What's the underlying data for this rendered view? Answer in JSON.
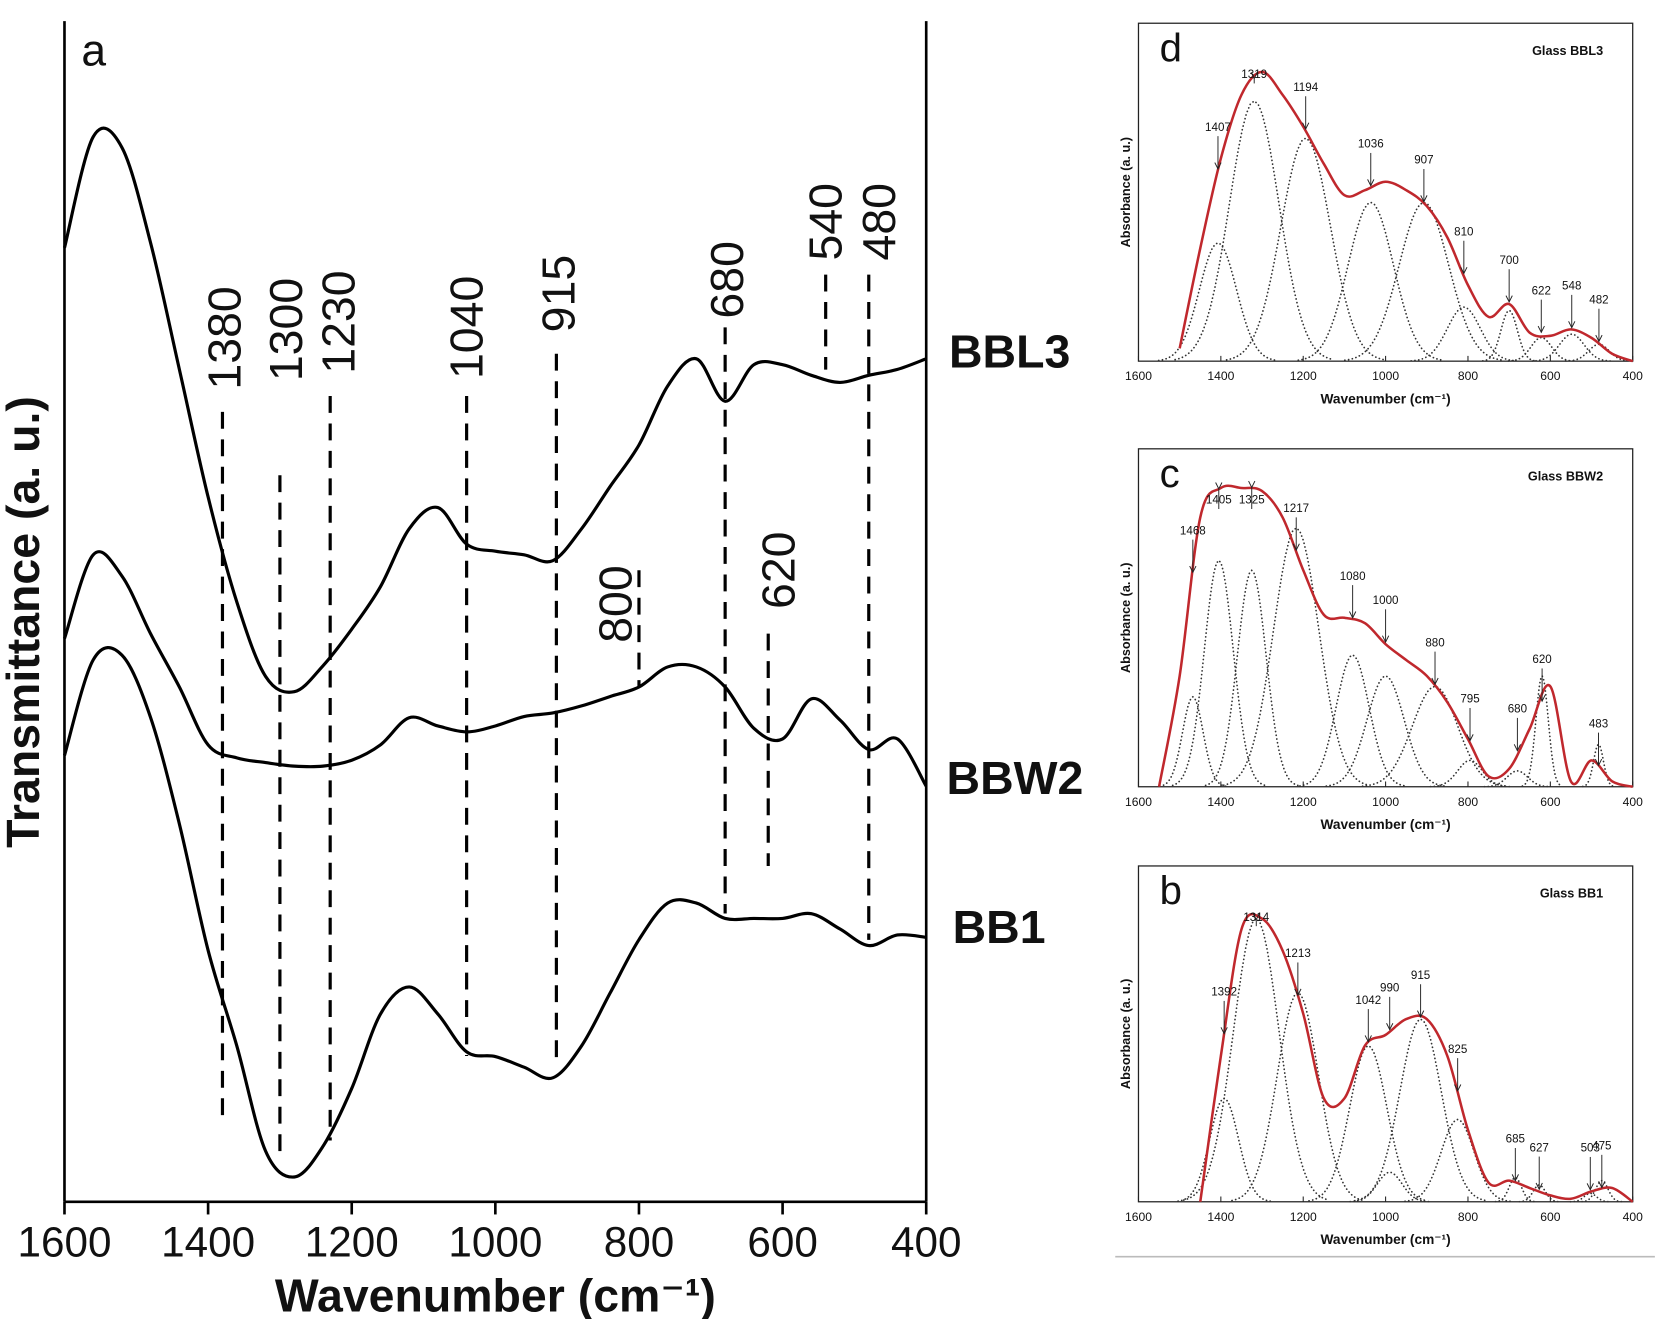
{
  "chart_data": [
    {
      "type": "line",
      "panel_label": "a",
      "xlabel": "Wavenumber (cm⁻¹)",
      "ylabel": "Transmittance (a. u.)",
      "x": [
        1600,
        1560,
        1520,
        1480,
        1440,
        1400,
        1360,
        1320,
        1280,
        1240,
        1200,
        1160,
        1120,
        1080,
        1040,
        1000,
        960,
        920,
        880,
        840,
        800,
        760,
        720,
        680,
        640,
        600,
        560,
        520,
        480,
        440,
        400
      ],
      "xlim": [
        1600,
        400
      ],
      "xticks": [
        1600,
        1400,
        1200,
        1000,
        800,
        600,
        400
      ],
      "ylim": [
        0,
        100
      ],
      "series": [
        {
          "name": "BBL3",
          "color": "#000000",
          "values": [
            80.8,
            90.2,
            89.3,
            81.2,
            70.5,
            59.7,
            50.8,
            44.5,
            43.2,
            45.4,
            48.5,
            52.1,
            57.0,
            58.8,
            55.7,
            55.1,
            54.8,
            54.3,
            57.0,
            60.6,
            64.1,
            69.1,
            71.4,
            67.8,
            70.9,
            70.9,
            70.0,
            69.4,
            70.0,
            70.5,
            71.4
          ]
        },
        {
          "name": "BBW2",
          "color": "#000000",
          "values": [
            47.7,
            54.8,
            53.0,
            48.1,
            43.6,
            38.7,
            37.6,
            37.2,
            36.9,
            36.9,
            37.4,
            38.7,
            41.0,
            40.3,
            39.8,
            40.3,
            41.1,
            41.4,
            42.0,
            42.8,
            43.6,
            45.3,
            45.3,
            43.6,
            40.1,
            39.2,
            42.6,
            40.8,
            38.3,
            39.2,
            35.2
          ]
        },
        {
          "name": "BB1",
          "color": "#000000",
          "values": [
            37.8,
            45.9,
            46.3,
            41.0,
            32.0,
            21.3,
            13.2,
            4.3,
            2.1,
            4.7,
            9.6,
            15.9,
            18.2,
            15.9,
            12.7,
            12.3,
            11.4,
            10.5,
            13.2,
            17.7,
            22.2,
            25.3,
            25.3,
            24.0,
            24.0,
            24.0,
            24.4,
            23.1,
            21.7,
            22.6,
            22.4
          ]
        }
      ],
      "annotations": [
        1380,
        1300,
        1230,
        1040,
        915,
        680,
        540,
        480,
        800,
        620
      ]
    },
    {
      "type": "fit",
      "panel_label": "d",
      "title": "Glass BBL3",
      "xlabel": "Wavenumber (cm⁻¹)",
      "ylabel": "Absorbance (a. u.)",
      "x": [
        1500,
        1450,
        1400,
        1350,
        1300,
        1250,
        1200,
        1150,
        1100,
        1050,
        1000,
        950,
        900,
        850,
        800,
        750,
        700,
        650,
        600,
        550,
        500,
        450,
        400
      ],
      "xlim": [
        1600,
        400
      ],
      "xticks": [
        1600,
        1400,
        1200,
        1000,
        800,
        600,
        400
      ],
      "ylim": [
        0,
        100
      ],
      "series": [
        {
          "color": "#c0282d",
          "values": [
            3.8,
            33.4,
            60,
            78.8,
            85.6,
            78.8,
            69.4,
            58.4,
            49.1,
            50.6,
            53.1,
            50.6,
            45.9,
            36.6,
            22.5,
            13.1,
            16.9,
            8.4,
            7.5,
            9.4,
            6.9,
            2.2,
            0
          ]
        }
      ],
      "components": [
        {
          "center": 1407,
          "height": 35,
          "sigma": 45
        },
        {
          "center": 1319,
          "height": 77,
          "sigma": 60
        },
        {
          "center": 1194,
          "height": 66,
          "sigma": 60
        },
        {
          "center": 1036,
          "height": 47,
          "sigma": 55
        },
        {
          "center": 907,
          "height": 47,
          "sigma": 60
        },
        {
          "center": 810,
          "height": 16,
          "sigma": 40
        },
        {
          "center": 700,
          "height": 15,
          "sigma": 20
        },
        {
          "center": 622,
          "height": 7,
          "sigma": 25
        },
        {
          "center": 548,
          "height": 8,
          "sigma": 30
        },
        {
          "center": 482,
          "height": 5,
          "sigma": 25
        }
      ]
    },
    {
      "type": "fit",
      "panel_label": "c",
      "title": "Glass BBW2",
      "xlabel": "Wavenumber (cm⁻¹)",
      "ylabel": "Absorbance (a. u.)",
      "x": [
        1550,
        1500,
        1450,
        1400,
        1350,
        1300,
        1250,
        1200,
        1150,
        1100,
        1050,
        1000,
        950,
        900,
        850,
        800,
        750,
        700,
        650,
        600,
        550,
        500,
        450,
        400
      ],
      "xlim": [
        1600,
        400
      ],
      "xticks": [
        1600,
        1400,
        1200,
        1000,
        800,
        600,
        400
      ],
      "ylim": [
        0,
        100
      ],
      "series": [
        {
          "color": "#c0282d",
          "values": [
            0,
            32.8,
            79.7,
            88.4,
            88.4,
            87.5,
            79.7,
            64.1,
            50.9,
            50,
            48.4,
            42.2,
            37.5,
            32.8,
            25,
            14.1,
            3.1,
            5.3,
            17.2,
            29.7,
            1.6,
            7.8,
            1.6,
            0
          ]
        }
      ],
      "components": [
        {
          "center": 1468,
          "height": 26.6,
          "sigma": 25
        },
        {
          "center": 1405,
          "height": 67,
          "sigma": 35
        },
        {
          "center": 1325,
          "height": 64,
          "sigma": 35
        },
        {
          "center": 1217,
          "height": 76.6,
          "sigma": 55
        },
        {
          "center": 1080,
          "height": 39,
          "sigma": 40
        },
        {
          "center": 1000,
          "height": 32.8,
          "sigma": 45
        },
        {
          "center": 880,
          "height": 29.7,
          "sigma": 55
        },
        {
          "center": 795,
          "height": 7.8,
          "sigma": 30
        },
        {
          "center": 680,
          "height": 4.7,
          "sigma": 25
        },
        {
          "center": 620,
          "height": 32.8,
          "sigma": 15
        },
        {
          "center": 483,
          "height": 12.5,
          "sigma": 12
        }
      ]
    },
    {
      "type": "fit",
      "panel_label": "b",
      "title": "Glass BB1",
      "xlabel": "Wavenumber (cm⁻¹)",
      "ylabel": "Absorbance (a. u.)",
      "x": [
        1450,
        1400,
        1350,
        1300,
        1250,
        1200,
        1150,
        1100,
        1050,
        1000,
        950,
        900,
        850,
        800,
        750,
        700,
        650,
        600,
        550,
        500,
        450,
        400
      ],
      "xlim": [
        1600,
        400
      ],
      "xticks": [
        1600,
        1400,
        1200,
        1000,
        800,
        600,
        400
      ],
      "ylim": [
        0,
        100
      ],
      "series": [
        {
          "color": "#c0282d",
          "values": [
            0,
            43.4,
            81.1,
            84.3,
            74.8,
            56,
            30.8,
            30.8,
            46.5,
            49.7,
            54.4,
            54.4,
            43.4,
            21.4,
            5.7,
            6.3,
            4.1,
            1.9,
            0.9,
            3.1,
            4.1,
            0
          ]
        }
      ],
      "components": [
        {
          "center": 1392,
          "height": 30.8,
          "sigma": 35
        },
        {
          "center": 1314,
          "height": 84.3,
          "sigma": 55
        },
        {
          "center": 1213,
          "height": 62.3,
          "sigma": 50
        },
        {
          "center": 1042,
          "height": 46.5,
          "sigma": 45
        },
        {
          "center": 990,
          "height": 8.8,
          "sigma": 30
        },
        {
          "center": 915,
          "height": 54.4,
          "sigma": 50
        },
        {
          "center": 825,
          "height": 24.5,
          "sigma": 40
        },
        {
          "center": 685,
          "height": 7.2,
          "sigma": 15
        },
        {
          "center": 627,
          "height": 5,
          "sigma": 15
        },
        {
          "center": 503,
          "height": 2.5,
          "sigma": 15
        },
        {
          "center": 475,
          "height": 6.3,
          "sigma": 15
        }
      ]
    }
  ]
}
